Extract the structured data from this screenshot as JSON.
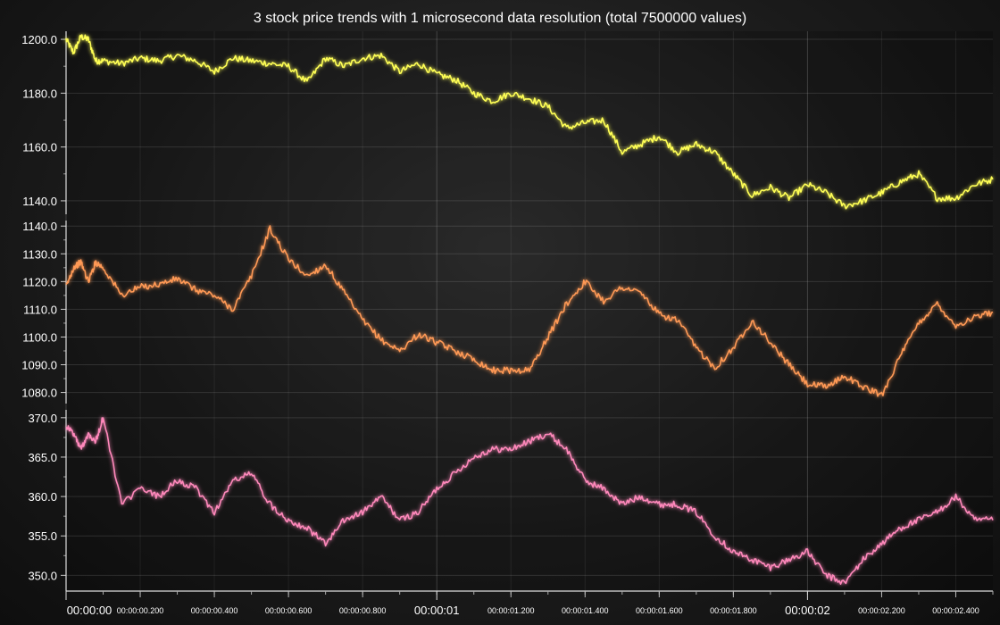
{
  "chart_data": {
    "type": "line",
    "title": "3 stock price trends with 1 microsecond data resolution (total 7500000 values)",
    "xlabel": "",
    "xlim": [
      0,
      2.5
    ],
    "x_major_ticks": [
      {
        "x": 0,
        "label": "00:00:00"
      },
      {
        "x": 1,
        "label": "00:00:01"
      },
      {
        "x": 2,
        "label": "00:00:02"
      }
    ],
    "x_minor_ticks": [
      {
        "x": 0.2,
        "label": "00:00:00.200"
      },
      {
        "x": 0.4,
        "label": "00:00:00.400"
      },
      {
        "x": 0.6,
        "label": "00:00:00.600"
      },
      {
        "x": 0.8,
        "label": "00:00:00.800"
      },
      {
        "x": 1.2,
        "label": "00:00:01.200"
      },
      {
        "x": 1.4,
        "label": "00:00:01.400"
      },
      {
        "x": 1.6,
        "label": "00:00:01.600"
      },
      {
        "x": 1.8,
        "label": "00:00:01.800"
      },
      {
        "x": 2.2,
        "label": "00:00:02.200"
      },
      {
        "x": 2.4,
        "label": "00:00:02.400"
      }
    ],
    "grid": true,
    "series": [
      {
        "name": "",
        "color": "#ffff55",
        "ylim": [
          1135,
          1203
        ],
        "yticks": [
          {
            "v": 1200,
            "label": "1200.0"
          },
          {
            "v": 1180,
            "label": "1180.0"
          },
          {
            "v": 1160,
            "label": "1160.0"
          },
          {
            "v": 1140,
            "label": "1140.0"
          }
        ],
        "x": [
          0,
          0.02,
          0.04,
          0.06,
          0.08,
          0.1,
          0.15,
          0.2,
          0.25,
          0.3,
          0.35,
          0.4,
          0.45,
          0.5,
          0.55,
          0.6,
          0.65,
          0.7,
          0.75,
          0.8,
          0.85,
          0.9,
          0.95,
          1.0,
          1.05,
          1.1,
          1.15,
          1.2,
          1.25,
          1.3,
          1.35,
          1.4,
          1.45,
          1.5,
          1.55,
          1.6,
          1.65,
          1.7,
          1.75,
          1.8,
          1.85,
          1.9,
          1.95,
          2.0,
          2.05,
          2.1,
          2.15,
          2.2,
          2.25,
          2.3,
          2.35,
          2.4,
          2.45,
          2.5
        ],
        "values": [
          1200,
          1195,
          1201,
          1200,
          1192,
          1192,
          1191,
          1193,
          1192,
          1194,
          1192,
          1188,
          1193,
          1192,
          1191,
          1190,
          1184,
          1193,
          1190,
          1193,
          1194,
          1188,
          1191,
          1187,
          1185,
          1180,
          1177,
          1180,
          1178,
          1175,
          1167,
          1169,
          1170,
          1158,
          1161,
          1164,
          1158,
          1161,
          1158,
          1150,
          1142,
          1145,
          1141,
          1146,
          1143,
          1138,
          1140,
          1143,
          1147,
          1150,
          1141,
          1141,
          1146,
          1148
        ]
      },
      {
        "name": "",
        "color": "#ff9955",
        "ylim": [
          1076,
          1142
        ],
        "yticks": [
          {
            "v": 1140,
            "label": "1140.0"
          },
          {
            "v": 1130,
            "label": "1130.0"
          },
          {
            "v": 1120,
            "label": "1120.0"
          },
          {
            "v": 1110,
            "label": "1110.0"
          },
          {
            "v": 1100,
            "label": "1100.0"
          },
          {
            "v": 1090,
            "label": "1090.0"
          },
          {
            "v": 1080,
            "label": "1080.0"
          }
        ],
        "x": [
          0,
          0.02,
          0.04,
          0.06,
          0.08,
          0.1,
          0.15,
          0.2,
          0.25,
          0.3,
          0.35,
          0.4,
          0.45,
          0.5,
          0.55,
          0.6,
          0.65,
          0.7,
          0.75,
          0.8,
          0.85,
          0.9,
          0.95,
          1.0,
          1.05,
          1.1,
          1.15,
          1.2,
          1.25,
          1.3,
          1.35,
          1.4,
          1.45,
          1.5,
          1.55,
          1.6,
          1.65,
          1.7,
          1.75,
          1.8,
          1.85,
          1.9,
          1.95,
          2.0,
          2.05,
          2.1,
          2.15,
          2.2,
          2.25,
          2.3,
          2.35,
          2.4,
          2.45,
          2.5
        ],
        "values": [
          1118,
          1125,
          1127,
          1120,
          1127,
          1125,
          1115,
          1118,
          1119,
          1121,
          1117,
          1115,
          1110,
          1122,
          1139,
          1128,
          1122,
          1126,
          1116,
          1106,
          1099,
          1095,
          1101,
          1098,
          1095,
          1092,
          1088,
          1088,
          1088,
          1100,
          1112,
          1120,
          1113,
          1118,
          1116,
          1108,
          1106,
          1096,
          1089,
          1096,
          1106,
          1098,
          1090,
          1083,
          1082,
          1086,
          1082,
          1079,
          1093,
          1105,
          1112,
          1104,
          1107,
          1109
        ]
      },
      {
        "name": "",
        "color": "#ff88bb",
        "ylim": [
          348,
          371
        ],
        "yticks": [
          {
            "v": 370,
            "label": "370.0"
          },
          {
            "v": 365,
            "label": "365.0"
          },
          {
            "v": 360,
            "label": "360.0"
          },
          {
            "v": 355,
            "label": "355.0"
          },
          {
            "v": 350,
            "label": "350.0"
          }
        ],
        "x": [
          0,
          0.02,
          0.04,
          0.06,
          0.08,
          0.1,
          0.15,
          0.2,
          0.25,
          0.3,
          0.35,
          0.4,
          0.45,
          0.5,
          0.55,
          0.6,
          0.65,
          0.7,
          0.75,
          0.8,
          0.85,
          0.9,
          0.95,
          1.0,
          1.05,
          1.1,
          1.15,
          1.2,
          1.25,
          1.3,
          1.35,
          1.4,
          1.45,
          1.5,
          1.55,
          1.6,
          1.65,
          1.7,
          1.75,
          1.8,
          1.85,
          1.9,
          1.95,
          2.0,
          2.05,
          2.1,
          2.15,
          2.2,
          2.25,
          2.3,
          2.35,
          2.4,
          2.45,
          2.5
        ],
        "values": [
          369,
          368,
          366,
          368,
          367,
          370,
          359,
          361,
          360,
          362,
          361,
          358,
          362,
          363,
          359,
          357,
          356,
          354,
          357,
          358,
          360,
          357,
          358,
          361,
          363,
          365,
          366,
          366,
          367,
          368,
          366,
          362,
          361,
          359,
          360,
          359,
          359,
          358,
          355,
          353,
          352,
          351,
          352,
          353,
          350,
          349,
          352,
          354,
          356,
          357,
          358,
          360,
          357,
          357
        ]
      }
    ]
  }
}
